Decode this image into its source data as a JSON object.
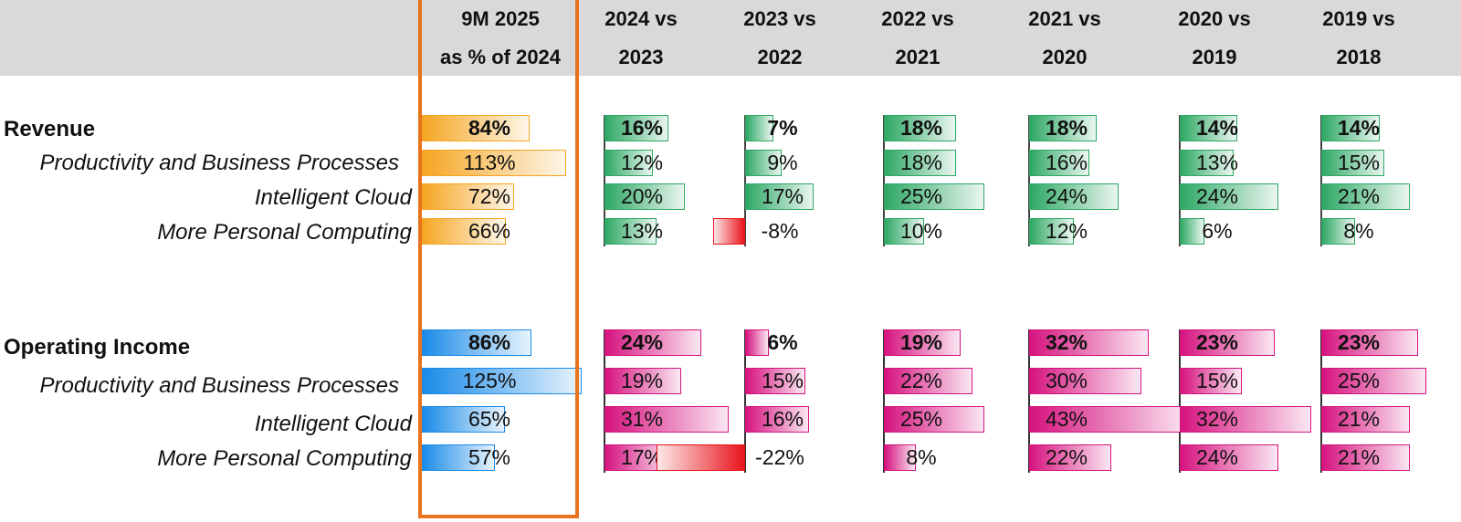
{
  "chart_data": {
    "type": "table",
    "columns": [
      {
        "line1": "9M 2025",
        "line2": "as % of 2024",
        "highlighted": true
      },
      {
        "line1": "2024 vs",
        "line2": "2023"
      },
      {
        "line1": "2023 vs",
        "line2": "2022"
      },
      {
        "line1": "2022 vs",
        "line2": "2021"
      },
      {
        "line1": "2021 vs",
        "line2": "2020"
      },
      {
        "line1": "2020 vs",
        "line2": "2019"
      },
      {
        "line1": "2019 vs",
        "line2": "2018"
      }
    ],
    "groups": [
      {
        "name": "Revenue",
        "palette": {
          "first": "#f5a623",
          "rest": "#2ea864",
          "negative": "#e8141b"
        },
        "rows": [
          {
            "label": "Revenue",
            "total": true,
            "values": [
              84,
              16,
              7,
              18,
              18,
              14,
              14
            ]
          },
          {
            "label": "Productivity and Business Processes",
            "total": false,
            "values": [
              113,
              12,
              9,
              18,
              16,
              13,
              15
            ]
          },
          {
            "label": "Intelligent Cloud",
            "total": false,
            "values": [
              72,
              20,
              17,
              25,
              24,
              24,
              21
            ]
          },
          {
            "label": "More Personal Computing",
            "total": false,
            "values": [
              66,
              13,
              -8,
              10,
              12,
              6,
              8
            ]
          }
        ]
      },
      {
        "name": "Operating Income",
        "palette": {
          "first": "#1a8be8",
          "rest": "#d6137f",
          "negative": "#e8141b"
        },
        "rows": [
          {
            "label": "Operating Income",
            "total": true,
            "values": [
              86,
              24,
              6,
              19,
              32,
              23,
              23
            ]
          },
          {
            "label": "Productivity and Business Processes",
            "total": false,
            "values": [
              125,
              19,
              15,
              22,
              30,
              15,
              25
            ]
          },
          {
            "label": "Intelligent Cloud",
            "total": false,
            "values": [
              65,
              31,
              16,
              25,
              43,
              32,
              21
            ]
          },
          {
            "label": "More Personal Computing",
            "total": false,
            "values": [
              57,
              17,
              -22,
              8,
              22,
              24,
              21
            ]
          }
        ]
      }
    ],
    "value_suffix": "%"
  }
}
